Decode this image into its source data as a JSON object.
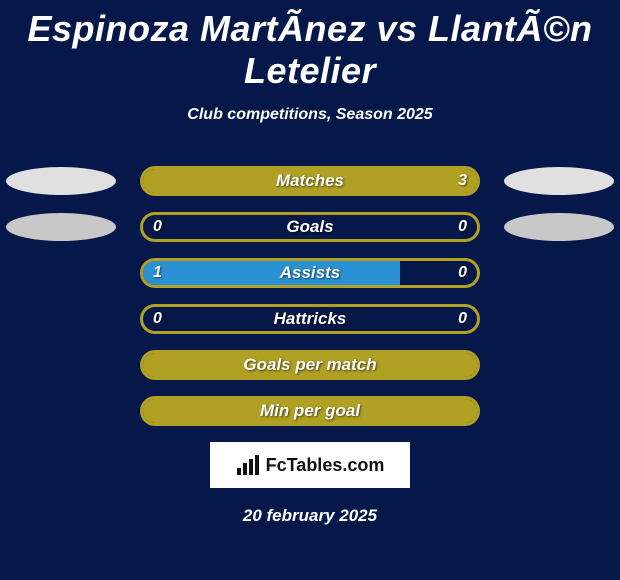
{
  "title": "Espinoza MartÃnez vs LlantÃ©n Letelier",
  "subtitle": "Club competitions, Season 2025",
  "date": "20 february 2025",
  "logo_text": "FcTables.com",
  "colors": {
    "background": "#06174a",
    "accent": "#b0a023",
    "blue_fill": "#2a92d4",
    "oval_light": "#e0e0e0",
    "oval_mid": "#c8c8c8",
    "white": "#ffffff"
  },
  "rows": [
    {
      "label": "Matches",
      "left_val": "",
      "right_val": "3",
      "left_fill_pct": 0,
      "right_fill_pct": 100,
      "fill_color": "#b0a023",
      "border_color": "#b0a023",
      "oval_left": "#e0e0e0",
      "oval_right": "#e0e0e0"
    },
    {
      "label": "Goals",
      "left_val": "0",
      "right_val": "0",
      "left_fill_pct": 0,
      "right_fill_pct": 0,
      "fill_color": "#b0a023",
      "border_color": "#b0a023",
      "oval_left": "#c8c8c8",
      "oval_right": "#c8c8c8"
    },
    {
      "label": "Assists",
      "left_val": "1",
      "right_val": "0",
      "left_fill_pct": 77,
      "right_fill_pct": 0,
      "fill_color": "#2a92d4",
      "border_color": "#b0a023",
      "oval_left": "",
      "oval_right": ""
    },
    {
      "label": "Hattricks",
      "left_val": "0",
      "right_val": "0",
      "left_fill_pct": 0,
      "right_fill_pct": 0,
      "fill_color": "#b0a023",
      "border_color": "#b0a023",
      "oval_left": "",
      "oval_right": ""
    },
    {
      "label": "Goals per match",
      "left_val": "",
      "right_val": "",
      "left_fill_pct": 100,
      "right_fill_pct": 0,
      "fill_color": "#b0a023",
      "border_color": "#b0a023",
      "oval_left": "",
      "oval_right": ""
    },
    {
      "label": "Min per goal",
      "left_val": "",
      "right_val": "",
      "left_fill_pct": 100,
      "right_fill_pct": 0,
      "fill_color": "#b0a023",
      "border_color": "#b0a023",
      "oval_left": "",
      "oval_right": ""
    }
  ]
}
